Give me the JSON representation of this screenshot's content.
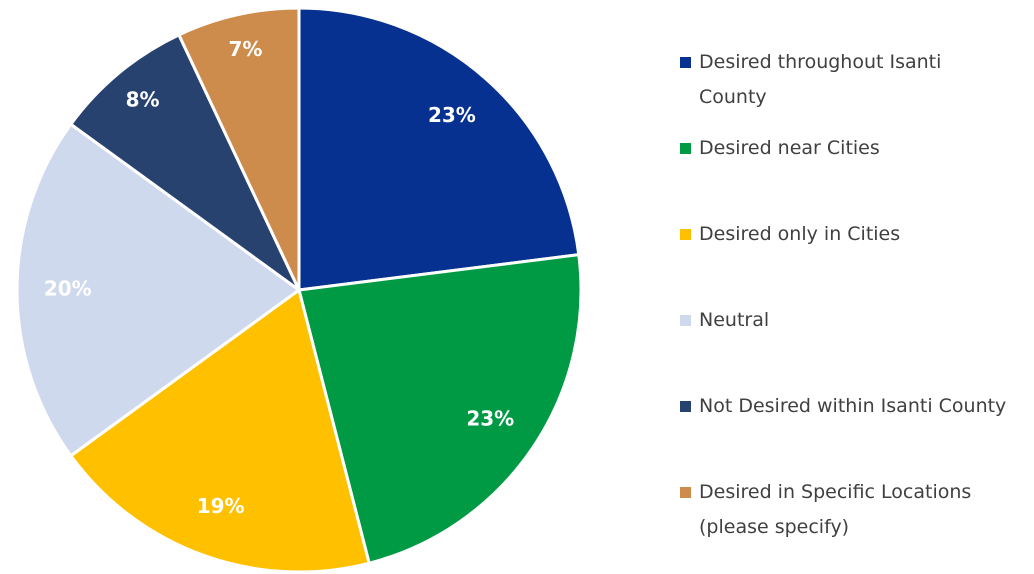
{
  "chart_data": {
    "type": "pie",
    "categories": [
      "Desired throughout Isanti County",
      "Desired near Cities",
      "Desired only in Cities",
      "Neutral",
      "Not Desired within Isanti County",
      "Desired in Specific Locations (please specify)"
    ],
    "values": [
      23,
      23,
      19,
      20,
      8,
      7
    ],
    "value_labels": [
      "23%",
      "23%",
      "19%",
      "20%",
      "8%",
      "7%"
    ],
    "colors": [
      "#063191",
      "#009a44",
      "#ffc000",
      "#cfd9ee",
      "#28426f",
      "#cd8c4b"
    ],
    "legend": "right"
  }
}
